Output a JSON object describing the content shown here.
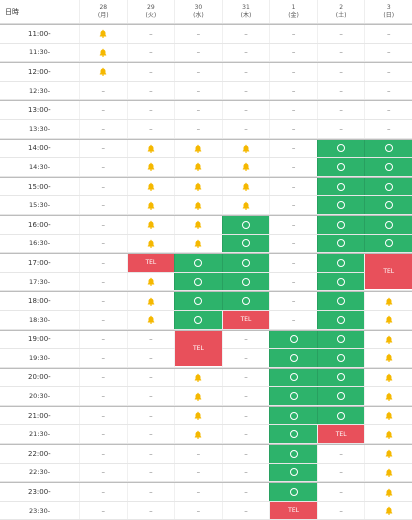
{
  "header": {
    "corner": "日時",
    "days": [
      {
        "date": "28",
        "dow": "(月)",
        "color": "normal"
      },
      {
        "date": "29",
        "dow": "(火)",
        "color": "normal"
      },
      {
        "date": "30",
        "dow": "(水)",
        "color": "normal"
      },
      {
        "date": "31",
        "dow": "(木)",
        "color": "normal"
      },
      {
        "date": "1",
        "dow": "(金)",
        "color": "normal"
      },
      {
        "date": "2",
        "dow": "(土)",
        "color": "sat"
      },
      {
        "date": "3",
        "dow": "(日)",
        "color": "sun"
      }
    ]
  },
  "colors": {
    "open": "#2db36b",
    "tel": "#e8505b",
    "bell": "#f5b800",
    "sat": "#2b3fbf",
    "sun": "#d9333f"
  },
  "symbols": {
    "dash": "–",
    "tel": "TEL",
    "bell": "bell-icon",
    "open": "circle-icon"
  },
  "rows": [
    {
      "time": "11:00-",
      "cells": [
        "bell",
        "-",
        "-",
        "-",
        "-",
        "-",
        "-"
      ]
    },
    {
      "time": "11:30-",
      "cells": [
        "bell",
        "-",
        "-",
        "-",
        "-",
        "-",
        "-"
      ]
    },
    {
      "time": "12:00-",
      "cells": [
        "bell",
        "-",
        "-",
        "-",
        "-",
        "-",
        "-"
      ]
    },
    {
      "time": "12:30-",
      "cells": [
        "-",
        "-",
        "-",
        "-",
        "-",
        "-",
        "-"
      ]
    },
    {
      "time": "13:00-",
      "cells": [
        "-",
        "-",
        "-",
        "-",
        "-",
        "-",
        "-"
      ]
    },
    {
      "time": "13:30-",
      "cells": [
        "-",
        "-",
        "-",
        "-",
        "-",
        "-",
        "-"
      ]
    },
    {
      "time": "14:00-",
      "cells": [
        "-",
        "bell",
        "bell",
        "bell",
        "-",
        "open",
        "open"
      ]
    },
    {
      "time": "14:30-",
      "cells": [
        "-",
        "bell",
        "bell",
        "bell",
        "-",
        "open",
        "open"
      ]
    },
    {
      "time": "15:00-",
      "cells": [
        "-",
        "bell",
        "bell",
        "bell",
        "-",
        "open",
        "open"
      ]
    },
    {
      "time": "15:30-",
      "cells": [
        "-",
        "bell",
        "bell",
        "bell",
        "-",
        "open",
        "open"
      ]
    },
    {
      "time": "16:00-",
      "cells": [
        "-",
        "bell",
        "bell",
        "open",
        "-",
        "open",
        "open"
      ]
    },
    {
      "time": "16:30-",
      "cells": [
        "-",
        "bell",
        "bell",
        "open",
        "-",
        "open",
        "open"
      ]
    },
    {
      "time": "17:00-",
      "cells": [
        "-",
        "tel",
        "open",
        "open",
        "-",
        "open",
        "tel2"
      ]
    },
    {
      "time": "17:30-",
      "cells": [
        "-",
        "bell",
        "open",
        "open",
        "-",
        "open",
        "none"
      ]
    },
    {
      "time": "18:00-",
      "cells": [
        "-",
        "bell",
        "open",
        "open",
        "-",
        "open",
        "bell"
      ]
    },
    {
      "time": "18:30-",
      "cells": [
        "-",
        "bell",
        "open",
        "tel",
        "-",
        "open",
        "bell"
      ]
    },
    {
      "time": "19:00-",
      "cells": [
        "-",
        "-",
        "tel2",
        "-",
        "open",
        "open",
        "bell"
      ]
    },
    {
      "time": "19:30-",
      "cells": [
        "-",
        "-",
        "none",
        "-",
        "open",
        "open",
        "bell"
      ]
    },
    {
      "time": "20:00-",
      "cells": [
        "-",
        "-",
        "bell",
        "-",
        "open",
        "open",
        "bell"
      ]
    },
    {
      "time": "20:30-",
      "cells": [
        "-",
        "-",
        "bell",
        "-",
        "open",
        "open",
        "bell"
      ]
    },
    {
      "time": "21:00-",
      "cells": [
        "-",
        "-",
        "bell",
        "-",
        "open",
        "open",
        "bell"
      ]
    },
    {
      "time": "21:30-",
      "cells": [
        "-",
        "-",
        "bell",
        "-",
        "open",
        "tel",
        "bell"
      ]
    },
    {
      "time": "22:00-",
      "cells": [
        "-",
        "-",
        "-",
        "-",
        "open",
        "-",
        "bell"
      ]
    },
    {
      "time": "22:30-",
      "cells": [
        "-",
        "-",
        "-",
        "-",
        "open",
        "-",
        "bell"
      ]
    },
    {
      "time": "23:00-",
      "cells": [
        "-",
        "-",
        "-",
        "-",
        "open",
        "-",
        "bell"
      ]
    },
    {
      "time": "23:30-",
      "cells": [
        "-",
        "-",
        "-",
        "-",
        "tel",
        "-",
        "bell"
      ]
    }
  ]
}
